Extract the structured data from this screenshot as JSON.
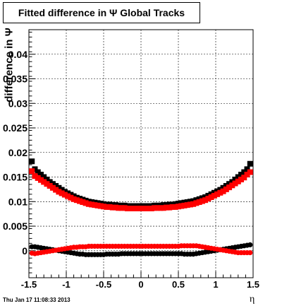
{
  "chart_data": {
    "type": "scatter",
    "title": "Fitted difference in Ψ   Global Tracks",
    "xlabel": "η",
    "ylabel": "difference in Ψ",
    "xlim": [
      -1.5,
      1.5
    ],
    "ylim": [
      -0.0055,
      0.045
    ],
    "grid": true,
    "x_ticks": [
      -1.5,
      -1,
      -0.5,
      0,
      0.5,
      1,
      1.5
    ],
    "x_tick_labels": [
      "-1.5",
      "-1",
      "-0.5",
      "0",
      "0.5",
      "1",
      "1.5"
    ],
    "y_ticks": [
      0,
      0.005,
      0.01,
      0.015,
      0.02,
      0.025,
      0.03,
      0.035,
      0.04
    ],
    "y_tick_labels": [
      "0",
      "0.005",
      "0.01",
      "0.015",
      "0.02",
      "0.025",
      "0.03",
      "0.035",
      "0.04"
    ],
    "x": [
      -1.46,
      -1.42,
      -1.38,
      -1.34,
      -1.3,
      -1.26,
      -1.22,
      -1.18,
      -1.14,
      -1.1,
      -1.06,
      -1.02,
      -0.98,
      -0.94,
      -0.9,
      -0.86,
      -0.82,
      -0.78,
      -0.74,
      -0.7,
      -0.66,
      -0.62,
      -0.58,
      -0.54,
      -0.5,
      -0.46,
      -0.42,
      -0.38,
      -0.34,
      -0.3,
      -0.26,
      -0.22,
      -0.18,
      -0.14,
      -0.1,
      -0.06,
      -0.02,
      0.02,
      0.06,
      0.1,
      0.14,
      0.18,
      0.22,
      0.26,
      0.3,
      0.34,
      0.38,
      0.42,
      0.46,
      0.5,
      0.54,
      0.58,
      0.62,
      0.66,
      0.7,
      0.74,
      0.78,
      0.82,
      0.86,
      0.9,
      0.94,
      0.98,
      1.02,
      1.06,
      1.1,
      1.14,
      1.18,
      1.22,
      1.26,
      1.3,
      1.34,
      1.38,
      1.42,
      1.46
    ],
    "series": [
      {
        "color": "#000000",
        "marker": "square",
        "values": [
          0.0182,
          0.0166,
          0.016,
          0.0155,
          0.015,
          0.0145,
          0.014,
          0.0136,
          0.0132,
          0.0128,
          0.0124,
          0.012,
          0.0117,
          0.0114,
          0.0111,
          0.0108,
          0.0106,
          0.0104,
          0.0102,
          0.01,
          0.0099,
          0.0098,
          0.0097,
          0.0096,
          0.0095,
          0.0094,
          0.0094,
          0.0093,
          0.0093,
          0.0092,
          0.0092,
          0.0092,
          0.0091,
          0.0091,
          0.0091,
          0.0091,
          0.0091,
          0.0091,
          0.0091,
          0.0091,
          0.0091,
          0.0092,
          0.0092,
          0.0092,
          0.0093,
          0.0093,
          0.0094,
          0.0094,
          0.0095,
          0.0096,
          0.0097,
          0.0098,
          0.0099,
          0.01,
          0.0101,
          0.0103,
          0.0105,
          0.0107,
          0.0109,
          0.0112,
          0.0115,
          0.0118,
          0.0121,
          0.0124,
          0.0128,
          0.0132,
          0.0136,
          0.014,
          0.0145,
          0.015,
          0.0155,
          0.016,
          0.0166,
          0.0177
        ]
      },
      {
        "color": "#ff0000",
        "marker": "square",
        "values": [
          0.0162,
          0.0152,
          0.0148,
          0.0144,
          0.014,
          0.0136,
          0.0132,
          0.0128,
          0.0124,
          0.012,
          0.0117,
          0.0114,
          0.0111,
          0.0108,
          0.0105,
          0.0103,
          0.0101,
          0.0099,
          0.0097,
          0.0095,
          0.0094,
          0.0093,
          0.0092,
          0.0091,
          0.009,
          0.0089,
          0.0089,
          0.0088,
          0.0088,
          0.0087,
          0.0087,
          0.0087,
          0.0086,
          0.0086,
          0.0086,
          0.0086,
          0.0086,
          0.0086,
          0.0086,
          0.0086,
          0.0086,
          0.0087,
          0.0087,
          0.0087,
          0.0087,
          0.0088,
          0.0088,
          0.0089,
          0.0089,
          0.009,
          0.0091,
          0.0092,
          0.0093,
          0.0094,
          0.0095,
          0.0097,
          0.0099,
          0.0101,
          0.0103,
          0.0106,
          0.0109,
          0.0112,
          0.0115,
          0.0118,
          0.0121,
          0.0125,
          0.0129,
          0.0133,
          0.0137,
          0.0141,
          0.0145,
          0.0149,
          0.0155,
          0.016
        ]
      },
      {
        "color": "#000000",
        "marker": "circle",
        "values": [
          0.0008,
          0.0008,
          0.0007,
          0.0006,
          0.0005,
          0.0004,
          0.0003,
          0.0002,
          0.0001,
          -0.0,
          -0.0001,
          -0.0002,
          -0.0003,
          -0.0004,
          -0.0005,
          -0.0006,
          -0.0007,
          -0.0007,
          -0.0008,
          -0.0008,
          -0.0008,
          -0.0008,
          -0.0008,
          -0.0008,
          -0.0008,
          -0.0007,
          -0.0007,
          -0.0007,
          -0.0007,
          -0.0007,
          -0.0006,
          -0.0006,
          -0.0006,
          -0.0006,
          -0.0006,
          -0.0006,
          -0.0006,
          -0.0006,
          -0.0006,
          -0.0006,
          -0.0006,
          -0.0006,
          -0.0006,
          -0.0006,
          -0.0006,
          -0.0006,
          -0.0006,
          -0.0006,
          -0.0006,
          -0.0006,
          -0.0006,
          -0.0007,
          -0.0007,
          -0.0007,
          -0.0007,
          -0.0006,
          -0.0005,
          -0.0004,
          -0.0003,
          -0.0002,
          -0.0001,
          0.0,
          0.0001,
          0.0002,
          0.0003,
          0.0004,
          0.0005,
          0.0006,
          0.0007,
          0.0008,
          0.0009,
          0.001,
          0.0011,
          0.0012
        ]
      },
      {
        "color": "#ff0000",
        "marker": "circle",
        "values": [
          -0.0005,
          -0.0006,
          -0.0005,
          -0.0004,
          -0.0003,
          -0.0002,
          -0.0001,
          0.0,
          0.0001,
          0.0002,
          0.0003,
          0.0004,
          0.0005,
          0.0006,
          0.0007,
          0.0007,
          0.0008,
          0.0008,
          0.0008,
          0.0009,
          0.0009,
          0.0009,
          0.0009,
          0.0009,
          0.0009,
          0.0009,
          0.0009,
          0.0009,
          0.0009,
          0.0009,
          0.0009,
          0.0009,
          0.0009,
          0.0009,
          0.0009,
          0.0009,
          0.0009,
          0.0009,
          0.0009,
          0.0009,
          0.0009,
          0.0009,
          0.0009,
          0.0009,
          0.0009,
          0.0009,
          0.0009,
          0.0009,
          0.0009,
          0.0009,
          0.001,
          0.001,
          0.001,
          0.001,
          0.001,
          0.001,
          0.0009,
          0.0008,
          0.0007,
          0.0006,
          0.0005,
          0.0004,
          0.0003,
          0.0002,
          0.0001,
          0.0,
          -0.0001,
          -0.0002,
          -0.0003,
          -0.0004,
          -0.0004,
          -0.0004,
          -0.0004,
          -0.0004
        ]
      }
    ]
  },
  "footer": {
    "timestamp": "Thu Jan 17 11:08:33 2013"
  }
}
